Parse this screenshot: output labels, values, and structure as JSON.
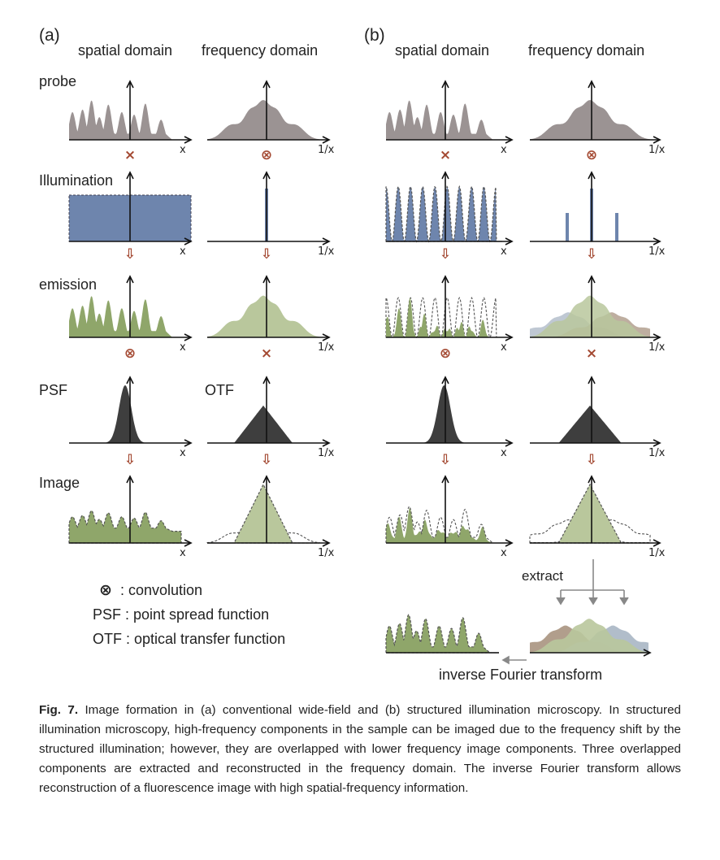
{
  "panels": {
    "a": {
      "label": "(a)",
      "spatial": "spatial domain",
      "frequency": "frequency domain"
    },
    "b": {
      "label": "(b)",
      "spatial": "spatial domain",
      "frequency": "frequency domain"
    }
  },
  "rows": {
    "probe": "probe",
    "illumination": "Illumination",
    "emission": "emission",
    "psf": "PSF",
    "otf": "OTF",
    "image": "Image"
  },
  "axes": {
    "x": "x",
    "inv_x": "1/x"
  },
  "operators": {
    "times": "×",
    "convolution": "⊗",
    "down_arrow": "⇩"
  },
  "legend": {
    "convolution_symbol": "⊗",
    "convolution": ": convolution",
    "psf": "PSF : point spread function",
    "otf": "OTF : optical transfer function"
  },
  "annotations": {
    "extract": "extract",
    "inverse_fourier": "inverse Fourier transform"
  },
  "colors": {
    "gray": "#9b9393",
    "blue": "#6e85ad",
    "green": "#8fa66a",
    "light_green": "#b9c79c",
    "dark": "#3e3e3e",
    "operator": "#a44a33"
  },
  "caption": {
    "lead": "Fig. 7.",
    "text": " Image formation in (a) conventional wide-field and (b) structured illumination microscopy. In structured illumination microscopy, high-frequency components in the sample can be imaged due to the frequency shift by the structured illumination; however, they are overlapped with lower frequency image components. Three overlapped components are extracted and reconstructed in the frequency domain. The inverse Fourier transform allows reconstruction of a fluorescence image with high spatial-frequency information."
  }
}
